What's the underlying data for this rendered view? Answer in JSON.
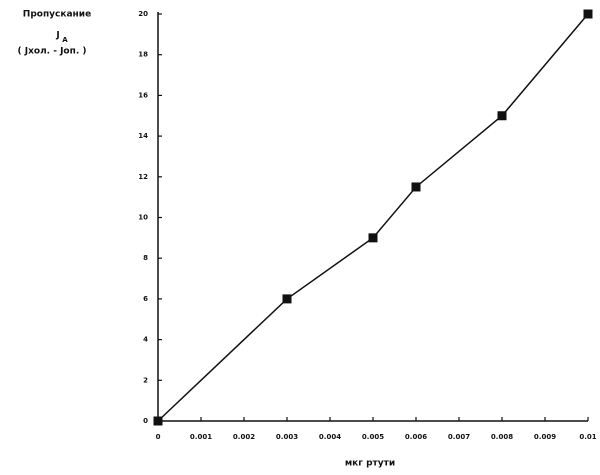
{
  "chart_data": {
    "type": "line",
    "ylabel": {
      "title": "Пропускание",
      "symbol": "J",
      "subscript": "A",
      "formula": "( Jхол. - Jоп. )"
    },
    "xlabel": "мкг ртути",
    "x": [
      0,
      0.003,
      0.005,
      0.006,
      0.008,
      0.01
    ],
    "series": [
      {
        "color": "#111111",
        "values": [
          0,
          6,
          9,
          11.5,
          15,
          20
        ]
      }
    ],
    "xlim": [
      0,
      0.01
    ],
    "xticks": [
      0,
      0.001,
      0.002,
      0.003,
      0.004,
      0.005,
      0.006,
      0.007,
      0.008,
      0.009,
      0.01
    ],
    "ylim": [
      0,
      20
    ],
    "yticks": [
      0,
      2,
      4,
      6,
      8,
      10,
      12,
      14,
      16,
      18,
      20
    ],
    "grid": false
  }
}
